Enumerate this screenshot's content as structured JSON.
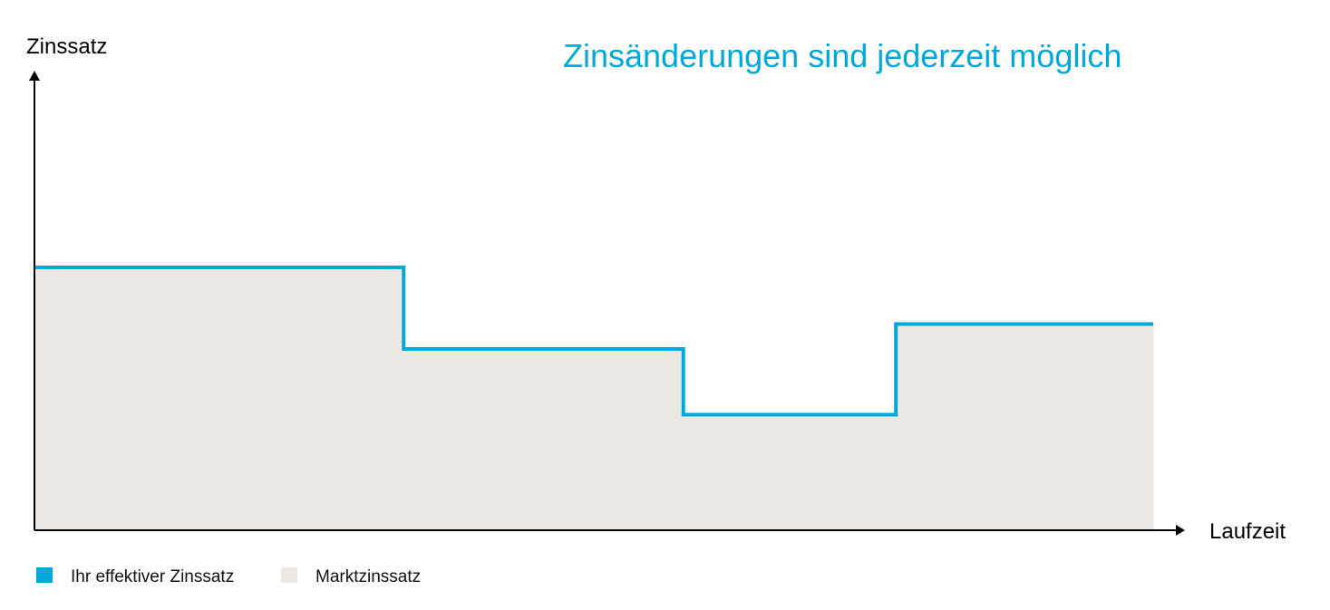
{
  "chart_data": {
    "type": "area",
    "title": "Zinsänderungen sind jederzeit möglich",
    "xlabel": "Laufzeit",
    "ylabel": "Zinssatz",
    "xlim": [
      0,
      100
    ],
    "ylim": [
      0,
      100
    ],
    "grid": false,
    "legend_placement": "bottom-left",
    "step_breaks": [
      0,
      33,
      58,
      77,
      100
    ],
    "series": [
      {
        "name": "Ihr effektiver Zinssatz",
        "kind": "step-line",
        "color": "#00a9d9",
        "values": [
          58,
          40,
          25.5,
          45.5
        ]
      },
      {
        "name": "Marktzinssatz",
        "kind": "area",
        "color": "#ece9e4",
        "values": [
          58,
          40,
          25.5,
          45.5
        ]
      }
    ]
  }
}
